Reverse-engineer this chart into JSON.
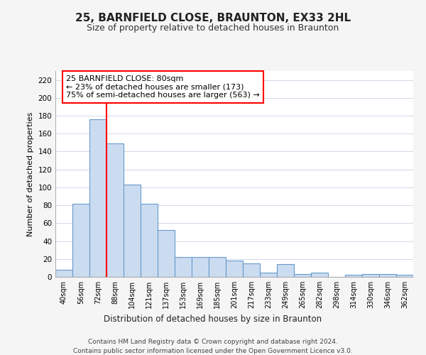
{
  "title1": "25, BARNFIELD CLOSE, BRAUNTON, EX33 2HL",
  "title2": "Size of property relative to detached houses in Braunton",
  "xlabel": "Distribution of detached houses by size in Braunton",
  "ylabel": "Number of detached properties",
  "bar_values": [
    8,
    82,
    176,
    149,
    103,
    82,
    52,
    22,
    22,
    22,
    18,
    15,
    5,
    14,
    3,
    5,
    0,
    2,
    3,
    3,
    2
  ],
  "bin_labels": [
    "40sqm",
    "56sqm",
    "72sqm",
    "88sqm",
    "104sqm",
    "121sqm",
    "137sqm",
    "153sqm",
    "169sqm",
    "185sqm",
    "201sqm",
    "217sqm",
    "233sqm",
    "249sqm",
    "265sqm",
    "282sqm",
    "298sqm",
    "314sqm",
    "330sqm",
    "346sqm",
    "362sqm"
  ],
  "bar_color": "#ccdcf0",
  "bar_edge_color": "#6699cc",
  "ylim": [
    0,
    230
  ],
  "yticks": [
    0,
    20,
    40,
    60,
    80,
    100,
    120,
    140,
    160,
    180,
    200,
    220
  ],
  "red_line_bin_index": 2,
  "annotation_line1": "25 BARNFIELD CLOSE: 80sqm",
  "annotation_line2": "← 23% of detached houses are smaller (173)",
  "annotation_line3": "75% of semi-detached houses are larger (563) →",
  "footnote1": "Contains HM Land Registry data © Crown copyright and database right 2024.",
  "footnote2": "Contains public sector information licensed under the Open Government Licence v3.0.",
  "bg_color": "#f5f5f5",
  "plot_bg_color": "#ffffff",
  "grid_color": "#d0d8e8",
  "title1_fontsize": 11,
  "title2_fontsize": 9
}
